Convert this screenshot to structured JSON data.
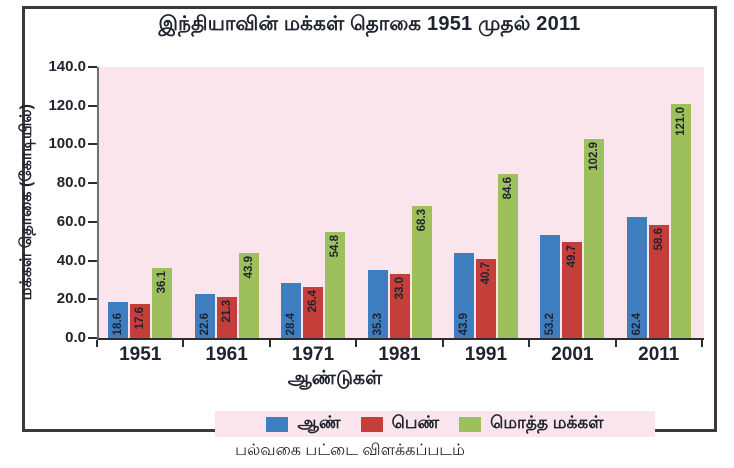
{
  "figure": {
    "caption": "பல்வகை பட்டை விளக்கப்படம்"
  },
  "chart_data": {
    "type": "bar",
    "title": "இந்தியாவின் மக்கள் தொகை 1951 முதல் 2011",
    "xlabel": "ஆண்டுகள்",
    "ylabel": "மக்கள் தொகை (கோடியில்)",
    "categories": [
      "1951",
      "1961",
      "1971",
      "1981",
      "1991",
      "2001",
      "2011"
    ],
    "series": [
      {
        "id": "male",
        "name": "ஆண்",
        "color": "#3e7dbe",
        "label_anchor": "base",
        "values": [
          18.6,
          22.6,
          28.4,
          35.3,
          43.9,
          53.2,
          62.4
        ]
      },
      {
        "id": "female",
        "name": "பெண்",
        "color": "#c43e3a",
        "label_anchor": "end",
        "values": [
          17.6,
          21.3,
          26.4,
          33.0,
          40.7,
          49.7,
          58.6
        ]
      },
      {
        "id": "total",
        "name": "மொத்த மக்கள்",
        "color": "#9dbf5c",
        "label_anchor": "end",
        "values": [
          36.1,
          43.9,
          54.8,
          68.3,
          84.6,
          102.9,
          121.0
        ]
      }
    ],
    "ylim": [
      0,
      140
    ],
    "ytick_step": 20,
    "ytick_labels": [
      "0.0",
      "20.0",
      "40.0",
      "60.0",
      "80.0",
      "100.0",
      "120.0",
      "140.0"
    ],
    "grid": false,
    "data_labels": true,
    "legend_position": "bottom",
    "colors": {
      "plot_background": "#fbe5ec",
      "legend_background": "#fbe5ec",
      "frame_border": "#3a3a3a",
      "axis_line": "#2b2d33",
      "text": "#20242e"
    }
  }
}
